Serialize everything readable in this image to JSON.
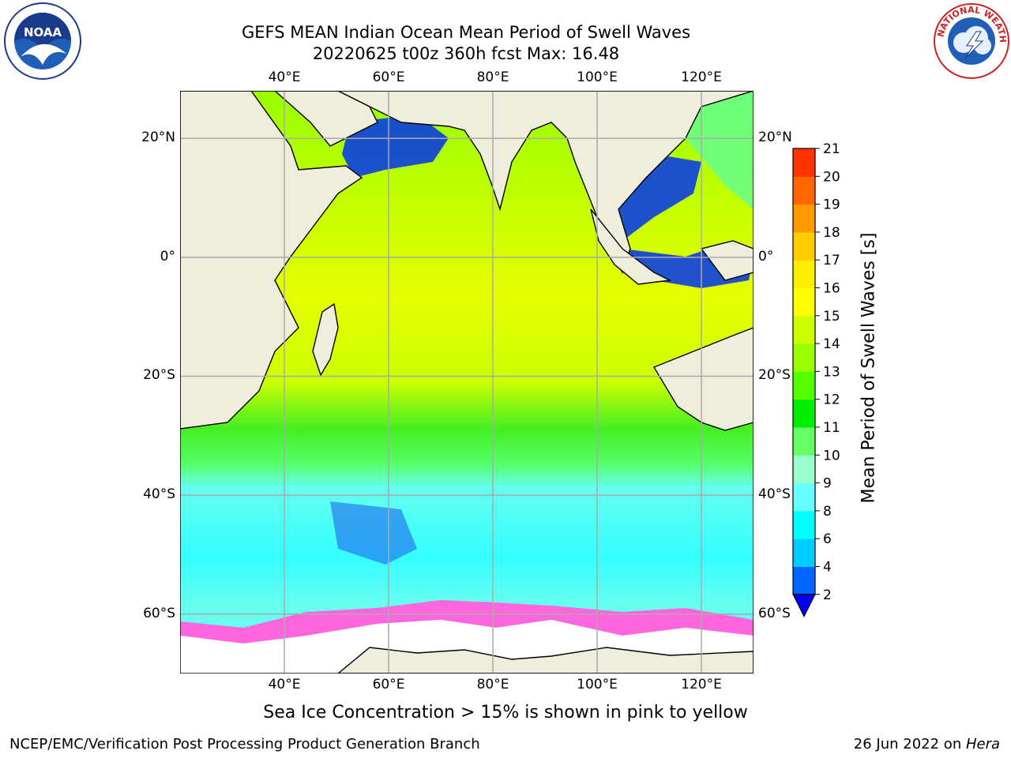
{
  "title": {
    "line1": "GEFS MEAN Indian Ocean Mean Period of Swell Waves",
    "line2": "20220625 t00z 360h fcst   Max: 16.48"
  },
  "logos": {
    "left": {
      "icon": "noaa-logo",
      "text": "NOAA",
      "ring_text": "NATIONAL OCEANIC AND ATMOSPHERIC ADMINISTRATION · U.S. DEPARTMENT OF COMMERCE"
    },
    "right": {
      "icon": "national-weather-service-logo",
      "ring_text": "NATIONAL WEATHER SERVICE"
    }
  },
  "map": {
    "lon_range": [
      20,
      130
    ],
    "lat_range": [
      -70,
      28
    ],
    "lon_ticks": [
      "40°E",
      "60°E",
      "80°E",
      "100°E",
      "120°E"
    ],
    "lat_ticks": [
      "20°N",
      "0°",
      "20°S",
      "40°S",
      "60°S"
    ],
    "lon_tick_values": [
      40,
      60,
      80,
      100,
      120
    ],
    "lat_tick_values": [
      20,
      0,
      -20,
      -40,
      -60
    ],
    "grid": true,
    "land_color": "#efeddc",
    "ice_color": "#ffffff"
  },
  "colorbar": {
    "label": "Mean Period of Swell Waves [s]",
    "ticks": [
      "2",
      "4",
      "6",
      "8",
      "9",
      "10",
      "11",
      "12",
      "13",
      "14",
      "15",
      "16",
      "17",
      "18",
      "19",
      "20",
      "21"
    ],
    "colors": [
      "#0066ff",
      "#00ccff",
      "#00ffff",
      "#66ffff",
      "#99ffcc",
      "#66ff66",
      "#00ee00",
      "#55ff00",
      "#99ff00",
      "#ccff00",
      "#ffff00",
      "#ffee00",
      "#ffcc00",
      "#ff9900",
      "#ff6600",
      "#ff3300"
    ],
    "underflow_color": "#0000ee"
  },
  "note": "Sea Ice Concentration > 15% is shown in pink to yellow",
  "footer": {
    "left": "NCEP/EMC/Verification Post Processing Product Generation Branch",
    "right_date": "26 Jun 2022 on ",
    "right_host": "Hera"
  }
}
